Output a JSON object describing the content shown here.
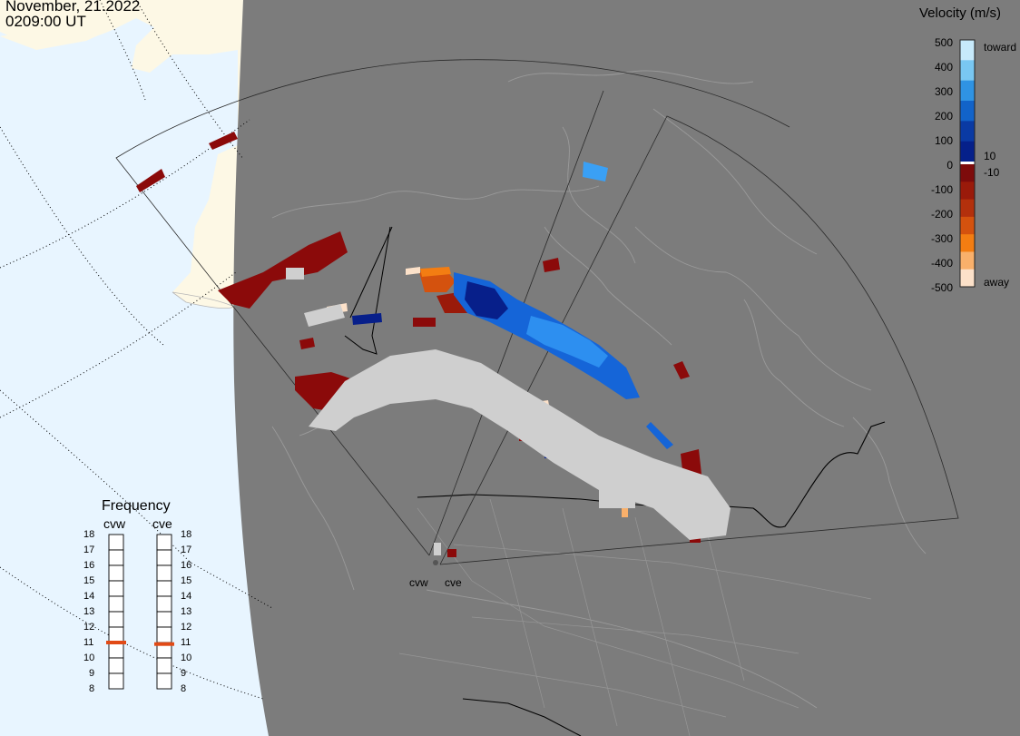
{
  "header": {
    "date": "November, 21.2022",
    "time": "0209:00 UT"
  },
  "colorbar": {
    "title": "Velocity (m/s)",
    "ticks": [
      "500",
      "400",
      "300",
      "200",
      "100",
      "0",
      "-100",
      "-200",
      "-300",
      "-400",
      "-500"
    ],
    "labels_right": {
      "toward": "toward",
      "plus10": "10",
      "minus10": "-10",
      "away": "away"
    },
    "toward_colors": [
      "#c7eafb",
      "#79c7f2",
      "#2f93e3",
      "#1263c9",
      "#0a3aa4",
      "#05208a"
    ],
    "away_colors": [
      "#7d0b0b",
      "#9a1a0a",
      "#b3300c",
      "#d4520e",
      "#f37d12",
      "#f9b06b",
      "#fce1c9"
    ]
  },
  "frequency": {
    "title": "Frequency",
    "radars": [
      "cvw",
      "cve"
    ],
    "levels": [
      "18",
      "17",
      "16",
      "15",
      "14",
      "13",
      "12",
      "11",
      "10",
      "9",
      "8"
    ],
    "current": {
      "cvw": 11,
      "cve": 10.9
    },
    "marker_color": "#e14a16"
  },
  "sites": [
    "cvw",
    "cve"
  ],
  "colors": {
    "ocean": "#e8f5ff",
    "land_polar": "#fdf8e5",
    "night": "#7c7c7c",
    "ground_scatter": "#cfcfcf",
    "border": "#000000"
  }
}
